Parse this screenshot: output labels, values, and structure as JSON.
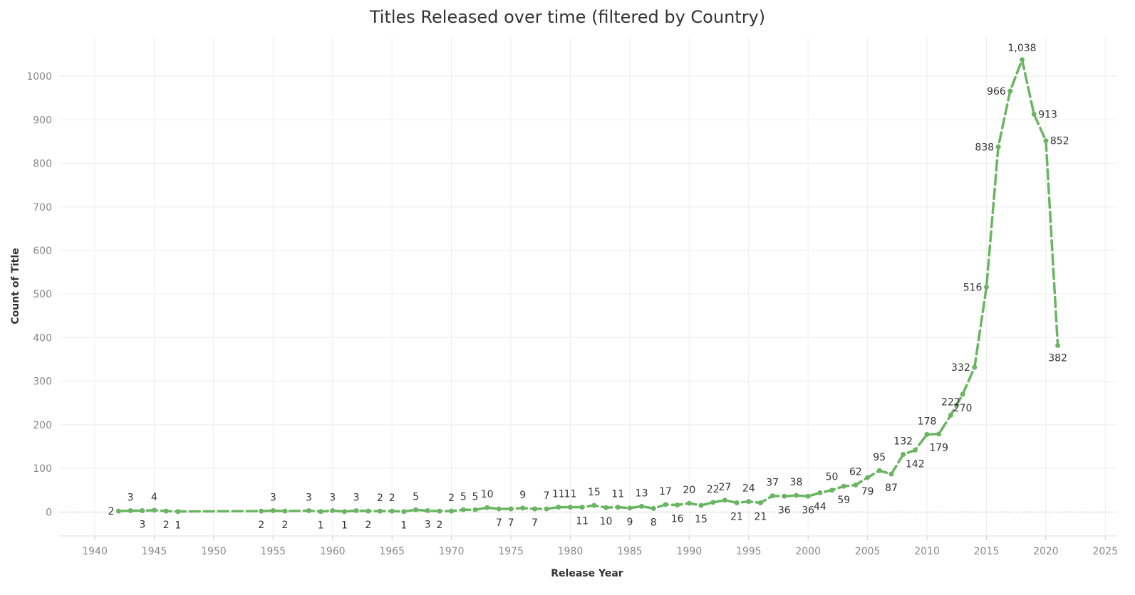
{
  "chart_data": {
    "type": "line",
    "title": "Titles Released over time (filtered by Country)",
    "xlabel": "Release Year",
    "ylabel": "Count of Title",
    "xlim": [
      1937,
      2026
    ],
    "ylim": [
      -55,
      1090
    ],
    "xticks": [
      1940,
      1945,
      1950,
      1955,
      1960,
      1965,
      1970,
      1975,
      1980,
      1985,
      1990,
      1995,
      2000,
      2005,
      2010,
      2015,
      2020,
      2025
    ],
    "yticks": [
      0,
      100,
      200,
      300,
      400,
      500,
      600,
      700,
      800,
      900,
      1000
    ],
    "grid": true,
    "line_color": "#6ab562",
    "line_style": "dashed",
    "series": [
      {
        "points": [
          {
            "x": 1942,
            "y": 2,
            "label": "2"
          },
          {
            "x": 1943,
            "y": 3,
            "label": "3"
          },
          {
            "x": 1944,
            "y": 3,
            "label": "3"
          },
          {
            "x": 1945,
            "y": 4,
            "label": "4"
          },
          {
            "x": 1946,
            "y": 2,
            "label": "2"
          },
          {
            "x": 1947,
            "y": 1,
            "label": "1"
          },
          {
            "x": 1954,
            "y": 2,
            "label": "2"
          },
          {
            "x": 1955,
            "y": 3,
            "label": "3"
          },
          {
            "x": 1956,
            "y": 2,
            "label": "2"
          },
          {
            "x": 1958,
            "y": 3,
            "label": "3"
          },
          {
            "x": 1959,
            "y": 1,
            "label": "1"
          },
          {
            "x": 1960,
            "y": 3,
            "label": "3"
          },
          {
            "x": 1961,
            "y": 1,
            "label": "1"
          },
          {
            "x": 1962,
            "y": 3,
            "label": "3"
          },
          {
            "x": 1963,
            "y": 2,
            "label": "2"
          },
          {
            "x": 1964,
            "y": 2,
            "label": "2"
          },
          {
            "x": 1965,
            "y": 2,
            "label": "2"
          },
          {
            "x": 1966,
            "y": 1,
            "label": "1"
          },
          {
            "x": 1967,
            "y": 5,
            "label": "5"
          },
          {
            "x": 1968,
            "y": 3,
            "label": "3"
          },
          {
            "x": 1969,
            "y": 2,
            "label": "2"
          },
          {
            "x": 1970,
            "y": 2,
            "label": "2"
          },
          {
            "x": 1971,
            "y": 5,
            "label": "5"
          },
          {
            "x": 1972,
            "y": 5,
            "label": "5"
          },
          {
            "x": 1973,
            "y": 10,
            "label": "10"
          },
          {
            "x": 1974,
            "y": 7,
            "label": "7"
          },
          {
            "x": 1975,
            "y": 7,
            "label": "7"
          },
          {
            "x": 1976,
            "y": 9,
            "label": "9"
          },
          {
            "x": 1977,
            "y": 7,
            "label": "7"
          },
          {
            "x": 1978,
            "y": 7,
            "label": "7"
          },
          {
            "x": 1979,
            "y": 11,
            "label": "11"
          },
          {
            "x": 1980,
            "y": 11,
            "label": "11"
          },
          {
            "x": 1981,
            "y": 11,
            "label": "11"
          },
          {
            "x": 1982,
            "y": 15,
            "label": "15"
          },
          {
            "x": 1983,
            "y": 10,
            "label": "10"
          },
          {
            "x": 1984,
            "y": 11,
            "label": "11"
          },
          {
            "x": 1985,
            "y": 9,
            "label": "9"
          },
          {
            "x": 1986,
            "y": 13,
            "label": "13"
          },
          {
            "x": 1987,
            "y": 8,
            "label": "8"
          },
          {
            "x": 1988,
            "y": 17,
            "label": "17"
          },
          {
            "x": 1989,
            "y": 16,
            "label": "16"
          },
          {
            "x": 1990,
            "y": 20,
            "label": "20"
          },
          {
            "x": 1991,
            "y": 15,
            "label": "15"
          },
          {
            "x": 1992,
            "y": 22,
            "label": "22"
          },
          {
            "x": 1993,
            "y": 27,
            "label": "27"
          },
          {
            "x": 1994,
            "y": 21,
            "label": "21"
          },
          {
            "x": 1995,
            "y": 24,
            "label": "24"
          },
          {
            "x": 1996,
            "y": 21,
            "label": "21"
          },
          {
            "x": 1997,
            "y": 37,
            "label": "37"
          },
          {
            "x": 1998,
            "y": 36,
            "label": "36"
          },
          {
            "x": 1999,
            "y": 38,
            "label": "38"
          },
          {
            "x": 2000,
            "y": 36,
            "label": "36"
          },
          {
            "x": 2001,
            "y": 44,
            "label": "44"
          },
          {
            "x": 2002,
            "y": 50,
            "label": "50"
          },
          {
            "x": 2003,
            "y": 59,
            "label": "59"
          },
          {
            "x": 2004,
            "y": 62,
            "label": "62"
          },
          {
            "x": 2005,
            "y": 79,
            "label": "79"
          },
          {
            "x": 2006,
            "y": 95,
            "label": "95"
          },
          {
            "x": 2007,
            "y": 87,
            "label": "87"
          },
          {
            "x": 2008,
            "y": 132,
            "label": "132"
          },
          {
            "x": 2009,
            "y": 142,
            "label": "142"
          },
          {
            "x": 2010,
            "y": 178,
            "label": "178"
          },
          {
            "x": 2011,
            "y": 179,
            "label": "179"
          },
          {
            "x": 2012,
            "y": 222,
            "label": "222"
          },
          {
            "x": 2013,
            "y": 270,
            "label": "270"
          },
          {
            "x": 2014,
            "y": 332,
            "label": "332"
          },
          {
            "x": 2015,
            "y": 516,
            "label": "516"
          },
          {
            "x": 2016,
            "y": 838,
            "label": "838"
          },
          {
            "x": 2017,
            "y": 966,
            "label": "966"
          },
          {
            "x": 2018,
            "y": 1038,
            "label": "1,038"
          },
          {
            "x": 2019,
            "y": 913,
            "label": "913"
          },
          {
            "x": 2020,
            "y": 852,
            "label": "852"
          },
          {
            "x": 2021,
            "y": 382,
            "label": "382"
          }
        ]
      }
    ]
  }
}
